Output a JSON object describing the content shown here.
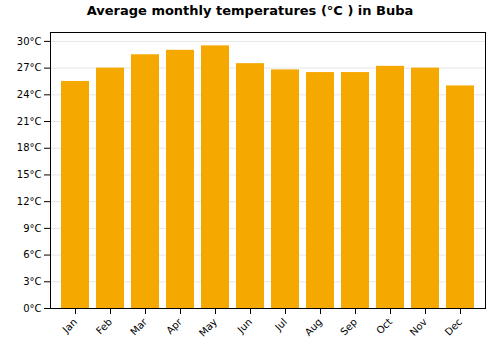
{
  "chart_data": {
    "type": "bar",
    "title": "Average monthly temperatures (°C ) in Buba",
    "categories": [
      "Jan",
      "Feb",
      "Mar",
      "Apr",
      "May",
      "Jun",
      "Jul",
      "Aug",
      "Sep",
      "Oct",
      "Nov",
      "Dec"
    ],
    "values": [
      25.5,
      27.0,
      28.5,
      29.0,
      29.5,
      27.5,
      26.8,
      26.5,
      26.5,
      27.2,
      27.0,
      25.0
    ],
    "color": "#F5A800",
    "ylim": [
      0,
      31
    ],
    "yticks": [
      {
        "value": 0,
        "label": "0°C"
      },
      {
        "value": 3,
        "label": "3°C"
      },
      {
        "value": 6,
        "label": "6°C"
      },
      {
        "value": 9,
        "label": "9°C"
      },
      {
        "value": 12,
        "label": "12°C"
      },
      {
        "value": 15,
        "label": "15°C"
      },
      {
        "value": 18,
        "label": "18°C"
      },
      {
        "value": 21,
        "label": "21°C"
      },
      {
        "value": 24,
        "label": "24°C"
      },
      {
        "value": 27,
        "label": "27°C"
      },
      {
        "value": 30,
        "label": "30°C"
      }
    ],
    "grid": true
  }
}
